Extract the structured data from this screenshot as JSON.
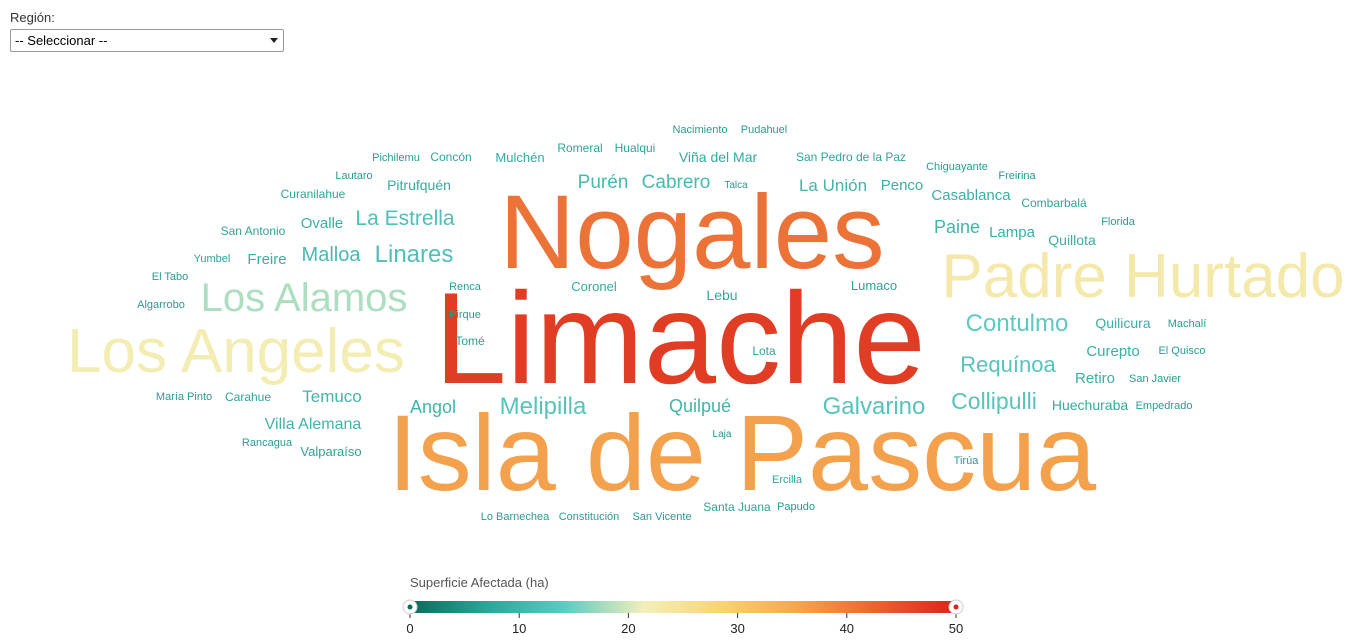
{
  "filter": {
    "label": "Región:",
    "selected": "-- Seleccionar --"
  },
  "chart_data": {
    "type": "wordcloud",
    "legend": {
      "title": "Superficie Afectada (ha)",
      "min": 0,
      "max": 50,
      "ticks": [
        0,
        10,
        20,
        30,
        40,
        50
      ],
      "colors": [
        "#0b6b5a",
        "#2ea59a",
        "#5fcbc4",
        "#f3efba",
        "#f9d373",
        "#f4a44f",
        "#e9622f",
        "#d9231c"
      ]
    },
    "words": [
      {
        "text": "Limache",
        "value": 47
      },
      {
        "text": "Isla de Pascua",
        "value": 36
      },
      {
        "text": "Nogales",
        "value": 41
      },
      {
        "text": "Padre Hurtado",
        "value": 23
      },
      {
        "text": "Los Angeles",
        "value": 22
      },
      {
        "text": "Los Alamos",
        "value": 18
      },
      {
        "text": "Contulmo",
        "value": 14
      },
      {
        "text": "Requínoa",
        "value": 13
      },
      {
        "text": "Collipulli",
        "value": 13
      },
      {
        "text": "Galvarino",
        "value": 13
      },
      {
        "text": "Melipilla",
        "value": 13
      },
      {
        "text": "Linares",
        "value": 12
      },
      {
        "text": "La Estrella",
        "value": 12
      },
      {
        "text": "Malloa",
        "value": 11
      },
      {
        "text": "Purén",
        "value": 11
      },
      {
        "text": "Cabrero",
        "value": 11
      },
      {
        "text": "Angol",
        "value": 10
      },
      {
        "text": "Quilpué",
        "value": 10
      },
      {
        "text": "Temuco",
        "value": 10
      },
      {
        "text": "Villa Alemana",
        "value": 10
      },
      {
        "text": "Paine",
        "value": 10
      },
      {
        "text": "La Unión",
        "value": 10
      },
      {
        "text": "Ovalle",
        "value": 9
      },
      {
        "text": "Freire",
        "value": 9
      },
      {
        "text": "Lampa",
        "value": 9
      },
      {
        "text": "Casablanca",
        "value": 9
      },
      {
        "text": "Penco",
        "value": 9
      },
      {
        "text": "Quillota",
        "value": 9
      },
      {
        "text": "Curepto",
        "value": 9
      },
      {
        "text": "Retiro",
        "value": 9
      },
      {
        "text": "Quilicura",
        "value": 9
      },
      {
        "text": "Huechuraba",
        "value": 8
      },
      {
        "text": "Pitrufquén",
        "value": 8
      },
      {
        "text": "Viña del Mar",
        "value": 8
      },
      {
        "text": "Mulchén",
        "value": 8
      },
      {
        "text": "Coronel",
        "value": 8
      },
      {
        "text": "Lebu",
        "value": 8
      },
      {
        "text": "Lumaco",
        "value": 7
      },
      {
        "text": "Lota",
        "value": 7
      },
      {
        "text": "Valparaíso",
        "value": 7
      },
      {
        "text": "Carahue",
        "value": 7
      },
      {
        "text": "Combarbalá",
        "value": 7
      },
      {
        "text": "San Antonio",
        "value": 7
      },
      {
        "text": "Curanilahue",
        "value": 7
      },
      {
        "text": "Yumbel",
        "value": 7
      },
      {
        "text": "Ercilla",
        "value": 7
      },
      {
        "text": "Santa Juana",
        "value": 7
      },
      {
        "text": "San Pedro de la Paz",
        "value": 7
      },
      {
        "text": "Romeral",
        "value": 7
      },
      {
        "text": "Hualqui",
        "value": 7
      },
      {
        "text": "Concón",
        "value": 7
      },
      {
        "text": "Chiguayante",
        "value": 6
      },
      {
        "text": "Freirina",
        "value": 6
      },
      {
        "text": "Florida",
        "value": 6
      },
      {
        "text": "Machalí",
        "value": 6
      },
      {
        "text": "El Quisco",
        "value": 6
      },
      {
        "text": "San Javier",
        "value": 6
      },
      {
        "text": "Empedrado",
        "value": 6
      },
      {
        "text": "Tirúa",
        "value": 6
      },
      {
        "text": "Papudo",
        "value": 6
      },
      {
        "text": "San Vicente",
        "value": 6
      },
      {
        "text": "Constitución",
        "value": 6
      },
      {
        "text": "Lo Barnechea",
        "value": 6
      },
      {
        "text": "Laja",
        "value": 5
      },
      {
        "text": "Rancagua",
        "value": 6
      },
      {
        "text": "María Pinto",
        "value": 6
      },
      {
        "text": "Algarrobo",
        "value": 6
      },
      {
        "text": "El Tabo",
        "value": 6
      },
      {
        "text": "Renca",
        "value": 6
      },
      {
        "text": "Pirque",
        "value": 6
      },
      {
        "text": "Tomé",
        "value": 6
      },
      {
        "text": "Talca",
        "value": 6
      },
      {
        "text": "Pichilemu",
        "value": 6
      },
      {
        "text": "Lautaro",
        "value": 6
      },
      {
        "text": "Nacimiento",
        "value": 6
      },
      {
        "text": "Pudahuel",
        "value": 6
      }
    ]
  }
}
